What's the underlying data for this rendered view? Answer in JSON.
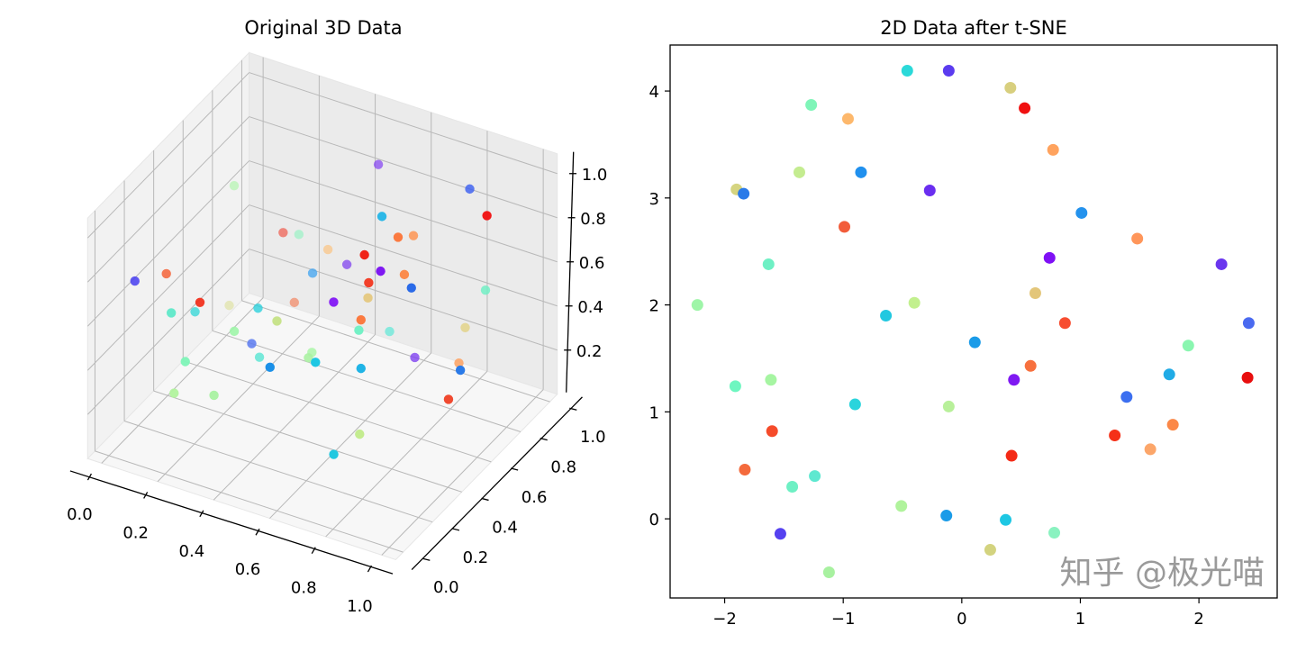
{
  "watermark": "知乎 @极光喵",
  "chart_data": [
    {
      "type": "scatter3d",
      "title": "Original 3D Data",
      "xlim": [
        -0.05,
        1.05
      ],
      "ylim": [
        -0.05,
        1.05
      ],
      "zlim": [
        0.0,
        1.09
      ],
      "xticks": [
        "0.0",
        "0.2",
        "0.4",
        "0.6",
        "0.8",
        "1.0"
      ],
      "yticks": [
        "0.0",
        "0.2",
        "0.4",
        "0.6",
        "0.8",
        "1.0"
      ],
      "zticks": [
        "0.2",
        "0.4",
        "0.6",
        "0.8",
        "1.0"
      ],
      "grid": true,
      "colormap": "rainbow",
      "points": [
        {
          "x": 0.49,
          "y": 0.9,
          "z": 0.91,
          "color": "#7f3cf2"
        },
        {
          "x": 0.79,
          "y": 0.95,
          "z": 0.89,
          "color": "#3c5ff0"
        },
        {
          "x": 0.08,
          "y": 0.7,
          "z": 0.78,
          "color": "#a6f5a2"
        },
        {
          "x": 0.93,
          "y": 0.8,
          "z": 0.93,
          "color": "#f01010"
        },
        {
          "x": 0.66,
          "y": 0.6,
          "z": 0.95,
          "color": "#1eb4e6"
        },
        {
          "x": 0.15,
          "y": 0.9,
          "z": 0.46,
          "color": "#f02a16"
        },
        {
          "x": 0.18,
          "y": 0.95,
          "z": 0.43,
          "color": "#7ff5b8"
        },
        {
          "x": 0.77,
          "y": 0.5,
          "z": 0.97,
          "color": "#fb7a40"
        },
        {
          "x": 0.72,
          "y": 0.7,
          "z": 0.82,
          "color": "#fc9a5c"
        },
        {
          "x": 0.31,
          "y": 0.9,
          "z": 0.45,
          "color": "#fdbc70"
        },
        {
          "x": 0.65,
          "y": 0.5,
          "z": 0.84,
          "color": "#ef1c10"
        },
        {
          "x": 0.43,
          "y": 0.8,
          "z": 0.5,
          "color": "#7a3af0"
        },
        {
          "x": 0.76,
          "y": 0.4,
          "z": 0.88,
          "color": "#7f19f2"
        },
        {
          "x": 0.36,
          "y": 0.7,
          "z": 0.5,
          "color": "#3aa0f0"
        },
        {
          "x": 0.74,
          "y": 0.6,
          "z": 0.72,
          "color": "#fb8848"
        },
        {
          "x": 0.77,
          "y": 0.3,
          "z": 0.9,
          "color": "#f2402a"
        },
        {
          "x": 0.87,
          "y": 0.4,
          "z": 0.85,
          "color": "#2a6ae8"
        },
        {
          "x": 0.82,
          "y": 1.0,
          "z": 0.41,
          "color": "#6ef0c4"
        },
        {
          "x": 0.04,
          "y": 0.1,
          "z": 0.74,
          "color": "#4a40f0"
        },
        {
          "x": 0.1,
          "y": 0.2,
          "z": 0.73,
          "color": "#f4643a"
        },
        {
          "x": 0.22,
          "y": 0.2,
          "z": 0.65,
          "color": "#f22a16"
        },
        {
          "x": 0.17,
          "y": 0.1,
          "z": 0.65,
          "color": "#5ee8c8"
        },
        {
          "x": 0.15,
          "y": 0.3,
          "z": 0.51,
          "color": "#3ed8d8"
        },
        {
          "x": 0.01,
          "y": 0.8,
          "z": 0.14,
          "color": "#d8dc88"
        },
        {
          "x": 0.27,
          "y": 0.5,
          "z": 0.44,
          "color": "#2ad0dc"
        },
        {
          "x": 0.19,
          "y": 0.9,
          "z": 0.16,
          "color": "#f46a3c"
        },
        {
          "x": 0.54,
          "y": 0.5,
          "z": 0.58,
          "color": "#7f10f5"
        },
        {
          "x": 0.61,
          "y": 0.6,
          "z": 0.56,
          "color": "#e3c67a"
        },
        {
          "x": 0.39,
          "y": 0.4,
          "z": 0.5,
          "color": "#c2e080"
        },
        {
          "x": 0.69,
          "y": 0.4,
          "z": 0.63,
          "color": "#fb7a40"
        },
        {
          "x": 0.29,
          "y": 0.3,
          "z": 0.48,
          "color": "#9ef5a8"
        },
        {
          "x": 0.63,
          "y": 0.5,
          "z": 0.49,
          "color": "#6ef0c4"
        },
        {
          "x": 0.53,
          "y": 0.9,
          "z": 0.17,
          "color": "#5ee8d8"
        },
        {
          "x": 0.8,
          "y": 0.9,
          "z": 0.3,
          "color": "#e3d48a"
        },
        {
          "x": 0.3,
          "y": 0.4,
          "z": 0.36,
          "color": "#5a7af0"
        },
        {
          "x": 0.38,
          "y": 0.3,
          "z": 0.4,
          "color": "#6ee8d8"
        },
        {
          "x": 0.47,
          "y": 0.2,
          "z": 0.46,
          "color": "#1a90e8"
        },
        {
          "x": 0.41,
          "y": 0.6,
          "z": 0.23,
          "color": "#a6f5a2"
        },
        {
          "x": 0.58,
          "y": 0.3,
          "z": 0.46,
          "color": "#1ec7e3"
        },
        {
          "x": 0.69,
          "y": 0.4,
          "z": 0.41,
          "color": "#20b4e6"
        },
        {
          "x": 0.62,
          "y": 0.9,
          "z": 0.09,
          "color": "#7a3af0"
        },
        {
          "x": 0.83,
          "y": 0.8,
          "z": 0.22,
          "color": "#fca66a"
        },
        {
          "x": 0.94,
          "y": 0.6,
          "z": 0.37,
          "color": "#2a7ae8"
        },
        {
          "x": 0.22,
          "y": 0.1,
          "z": 0.45,
          "color": "#7ff5b8"
        },
        {
          "x": 0.18,
          "y": 0.1,
          "z": 0.29,
          "color": "#b0f39c"
        },
        {
          "x": 0.27,
          "y": 0.2,
          "z": 0.25,
          "color": "#a8f1a0"
        },
        {
          "x": 0.95,
          "y": 0.5,
          "z": 0.31,
          "color": "#f04a30"
        },
        {
          "x": 0.79,
          "y": 0.2,
          "z": 0.29,
          "color": "#c4ec90"
        },
        {
          "x": 0.75,
          "y": 0.1,
          "z": 0.25,
          "color": "#22c8e0"
        },
        {
          "x": 0.45,
          "y": 0.5,
          "z": 0.29,
          "color": "#a8f1a0"
        }
      ]
    },
    {
      "type": "scatter",
      "title": "2D Data after t-SNE",
      "xlim": [
        -2.46,
        2.66
      ],
      "ylim": [
        -0.74,
        4.43
      ],
      "xticks": [
        {
          "v": -2,
          "label": "−2"
        },
        {
          "v": -1,
          "label": "−1"
        },
        {
          "v": 0,
          "label": "0"
        },
        {
          "v": 1,
          "label": "1"
        },
        {
          "v": 2,
          "label": "2"
        }
      ],
      "yticks": [
        {
          "v": 0,
          "label": "0"
        },
        {
          "v": 1,
          "label": "1"
        },
        {
          "v": 2,
          "label": "2"
        },
        {
          "v": 3,
          "label": "3"
        },
        {
          "v": 4,
          "label": "4"
        }
      ],
      "grid": false,
      "colormap": "rainbow",
      "points": [
        {
          "x": -0.46,
          "y": 4.19,
          "color": "#2bd9d9"
        },
        {
          "x": -0.11,
          "y": 4.19,
          "color": "#5b3bef"
        },
        {
          "x": 0.41,
          "y": 4.03,
          "color": "#d8cf7e"
        },
        {
          "x": 0.53,
          "y": 3.84,
          "color": "#f01010"
        },
        {
          "x": -1.27,
          "y": 3.87,
          "color": "#7ff5b8"
        },
        {
          "x": -0.96,
          "y": 3.74,
          "color": "#fdb86c"
        },
        {
          "x": 0.77,
          "y": 3.45,
          "color": "#ffa35e"
        },
        {
          "x": -1.37,
          "y": 3.24,
          "color": "#c4ec90"
        },
        {
          "x": -0.85,
          "y": 3.24,
          "color": "#2090ee"
        },
        {
          "x": -1.9,
          "y": 3.08,
          "color": "#d5d480"
        },
        {
          "x": -1.84,
          "y": 3.04,
          "color": "#2a7ae8"
        },
        {
          "x": -0.27,
          "y": 3.07,
          "color": "#6a2ef0"
        },
        {
          "x": 1.01,
          "y": 2.86,
          "color": "#2492ed"
        },
        {
          "x": -0.99,
          "y": 2.73,
          "color": "#f25c3a"
        },
        {
          "x": 1.48,
          "y": 2.62,
          "color": "#ff965a"
        },
        {
          "x": -1.63,
          "y": 2.38,
          "color": "#6ef0c4"
        },
        {
          "x": 0.74,
          "y": 2.44,
          "color": "#7f10f5"
        },
        {
          "x": 2.19,
          "y": 2.38,
          "color": "#6a36ee"
        },
        {
          "x": -2.23,
          "y": 2.0,
          "color": "#9ef5a8"
        },
        {
          "x": -0.4,
          "y": 2.02,
          "color": "#c2f08e"
        },
        {
          "x": 0.62,
          "y": 2.11,
          "color": "#e3c67a"
        },
        {
          "x": -0.64,
          "y": 1.9,
          "color": "#22c8e0"
        },
        {
          "x": 0.87,
          "y": 1.83,
          "color": "#f74d30"
        },
        {
          "x": 2.42,
          "y": 1.83,
          "color": "#4a6af0"
        },
        {
          "x": 0.11,
          "y": 1.65,
          "color": "#1a9be8"
        },
        {
          "x": 1.91,
          "y": 1.62,
          "color": "#8af6b0"
        },
        {
          "x": 0.58,
          "y": 1.43,
          "color": "#f7703e"
        },
        {
          "x": 0.44,
          "y": 1.3,
          "color": "#7f19f2"
        },
        {
          "x": 1.75,
          "y": 1.35,
          "color": "#20abe6"
        },
        {
          "x": 2.41,
          "y": 1.32,
          "color": "#e80e0e"
        },
        {
          "x": -1.91,
          "y": 1.24,
          "color": "#6ef6c0"
        },
        {
          "x": -1.61,
          "y": 1.3,
          "color": "#a6f5a2"
        },
        {
          "x": 1.39,
          "y": 1.14,
          "color": "#3c6ff0"
        },
        {
          "x": -0.9,
          "y": 1.07,
          "color": "#2ad4dc"
        },
        {
          "x": -0.11,
          "y": 1.05,
          "color": "#b8f09a"
        },
        {
          "x": -1.6,
          "y": 0.82,
          "color": "#f54b2a"
        },
        {
          "x": 1.78,
          "y": 0.88,
          "color": "#fb8848"
        },
        {
          "x": 1.29,
          "y": 0.78,
          "color": "#f53018"
        },
        {
          "x": 1.59,
          "y": 0.65,
          "color": "#fca66a"
        },
        {
          "x": 0.42,
          "y": 0.59,
          "color": "#f42a16"
        },
        {
          "x": -1.83,
          "y": 0.46,
          "color": "#f46a3c"
        },
        {
          "x": -1.24,
          "y": 0.4,
          "color": "#5ee8d0"
        },
        {
          "x": -1.43,
          "y": 0.3,
          "color": "#6ef0c4"
        },
        {
          "x": -0.51,
          "y": 0.12,
          "color": "#b0f39c"
        },
        {
          "x": -0.13,
          "y": 0.03,
          "color": "#1a9be8"
        },
        {
          "x": 0.37,
          "y": -0.01,
          "color": "#1ec7e3"
        },
        {
          "x": -1.53,
          "y": -0.14,
          "color": "#5541f0"
        },
        {
          "x": 0.78,
          "y": -0.13,
          "color": "#8af2c0"
        },
        {
          "x": 0.24,
          "y": -0.29,
          "color": "#d3d37f"
        },
        {
          "x": -1.12,
          "y": -0.5,
          "color": "#a8f1a0"
        }
      ]
    }
  ]
}
